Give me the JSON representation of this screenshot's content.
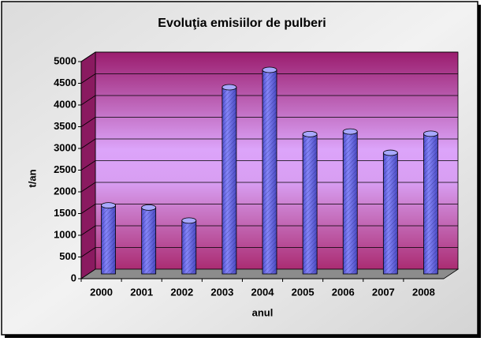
{
  "chart_data": {
    "type": "bar",
    "title": "Evoluţia emisiilor de pulberi",
    "x_label": "anul",
    "y_label": "t/an",
    "categories": [
      "2000",
      "2001",
      "2002",
      "2003",
      "2004",
      "2005",
      "2006",
      "2007",
      "2008"
    ],
    "values": [
      1580,
      1530,
      1230,
      4300,
      4700,
      3220,
      3280,
      2790,
      3230
    ],
    "color": "#6b6bef",
    "ylim": [
      0,
      5000
    ],
    "yticks": [
      0,
      500,
      1000,
      1500,
      2000,
      2500,
      3000,
      3500,
      4000,
      4500,
      5000
    ],
    "grid": true
  }
}
